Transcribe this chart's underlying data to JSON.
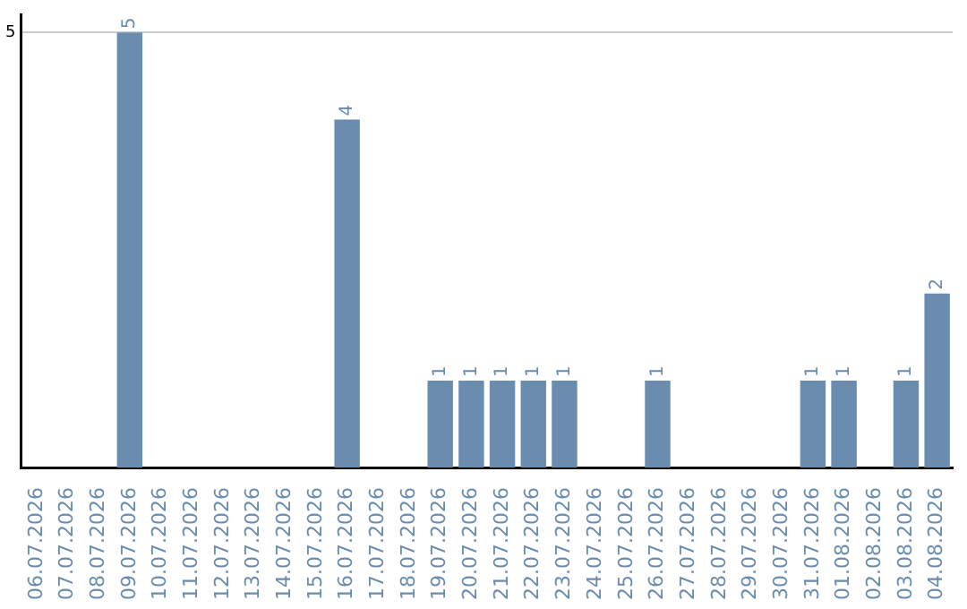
{
  "chart_data": {
    "type": "bar",
    "categories": [
      "06.07.2026",
      "07.07.2026",
      "08.07.2026",
      "09.07.2026",
      "10.07.2026",
      "11.07.2026",
      "12.07.2026",
      "13.07.2026",
      "14.07.2026",
      "15.07.2026",
      "16.07.2026",
      "17.07.2026",
      "18.07.2026",
      "19.07.2026",
      "20.07.2026",
      "21.07.2026",
      "22.07.2026",
      "23.07.2026",
      "24.07.2026",
      "25.07.2026",
      "26.07.2026",
      "27.07.2026",
      "28.07.2026",
      "29.07.2026",
      "30.07.2026",
      "31.07.2026",
      "01.08.2026",
      "02.08.2026",
      "03.08.2026",
      "04.08.2026"
    ],
    "values": [
      0,
      0,
      0,
      5,
      0,
      0,
      0,
      0,
      0,
      0,
      4,
      0,
      0,
      1,
      1,
      1,
      1,
      1,
      0,
      0,
      1,
      0,
      0,
      0,
      0,
      1,
      1,
      0,
      1,
      2
    ],
    "value_labels": [
      null,
      null,
      null,
      "5",
      null,
      null,
      null,
      null,
      null,
      null,
      "4",
      null,
      null,
      "1",
      "1",
      "1",
      "1",
      "1",
      null,
      null,
      "1",
      null,
      null,
      null,
      null,
      "1",
      "1",
      null,
      "1",
      "2"
    ],
    "color": "#6a8caf",
    "ylim": [
      0,
      5.2
    ],
    "yticks": [
      5
    ],
    "grid": "y",
    "legend": false
  }
}
